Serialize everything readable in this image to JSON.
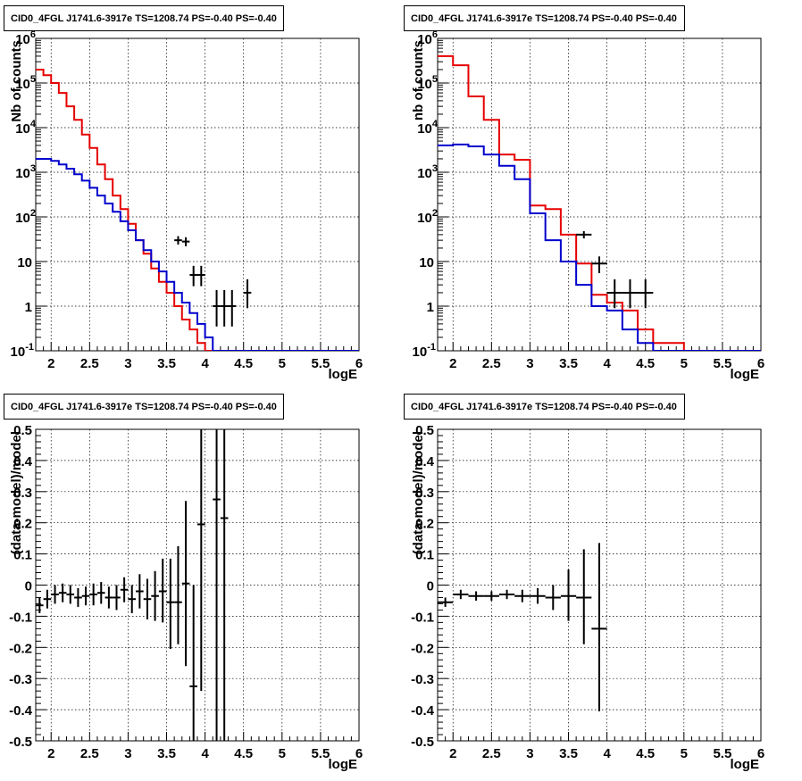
{
  "chart_data": [
    {
      "type": "line",
      "title": "CID0_4FGL J1741.6-3917e TS=1208.74 PS=-0.40 PS=-0.40",
      "xlabel": "logE",
      "ylabel": "Nb of counts",
      "xlim": [
        1.8,
        6.0
      ],
      "ylim": [
        0.1,
        1000000
      ],
      "yscale": "log",
      "grid": true,
      "x_ticks": [
        "2",
        "2.5",
        "3",
        "3.5",
        "4",
        "4.5",
        "5",
        "5.5",
        "6"
      ],
      "y_ticks": [
        "10^-1",
        "1",
        "10",
        "10^2",
        "10^3",
        "10^4",
        "10^5",
        "10^6"
      ],
      "bin_edges": [
        1.8,
        1.9,
        2.0,
        2.1,
        2.2,
        2.3,
        2.4,
        2.5,
        2.6,
        2.7,
        2.8,
        2.9,
        3.0,
        3.1,
        3.2,
        3.3,
        3.4,
        3.5,
        3.6,
        3.7,
        3.8,
        3.9,
        4.0,
        4.1,
        4.2,
        4.3,
        4.4,
        4.5,
        4.6,
        4.7,
        4.8,
        4.9,
        5.0,
        5.1,
        5.2,
        5.3,
        5.4,
        5.5,
        5.6,
        5.7,
        5.8,
        5.9,
        6.0
      ],
      "series": [
        {
          "color": "#e60000",
          "style": "step",
          "values": [
            200000,
            150000,
            100000,
            60000,
            30000,
            15000,
            7000,
            3500,
            1500,
            700,
            300,
            150,
            70,
            30,
            15,
            7,
            3.5,
            2,
            1,
            0.5,
            0.3,
            0.15,
            0.1,
            0.1,
            0.1,
            0.1,
            0.1,
            0.1,
            0.1,
            0.1,
            0.1,
            0.1,
            0.1,
            0.1,
            0.1,
            0.1,
            0.1,
            0.1,
            0.1,
            0.1,
            0.1,
            0.1
          ]
        },
        {
          "color": "#0000cc",
          "style": "step",
          "values": [
            2000,
            2000,
            1800,
            1500,
            1200,
            900,
            650,
            450,
            300,
            200,
            130,
            80,
            50,
            30,
            18,
            10,
            6,
            3.5,
            2,
            1.2,
            0.7,
            0.4,
            0.2,
            0.1,
            0.1,
            0.1,
            0.1,
            0.1,
            0.1,
            0.1,
            0.1,
            0.1,
            0.1,
            0.1,
            0.1,
            0.1,
            0.1,
            0.1,
            0.1,
            0.1,
            0.1,
            0.1
          ]
        },
        {
          "color": "#000000",
          "style": "errorbar",
          "points": [
            {
              "x": 3.65,
              "y": 30,
              "lo": 24,
              "hi": 37,
              "xerr": 0.05
            },
            {
              "x": 3.75,
              "y": 28,
              "lo": 22,
              "hi": 35,
              "xerr": 0.05
            },
            {
              "x": 3.85,
              "y": 5,
              "lo": 2.8,
              "hi": 8,
              "xerr": 0.05
            },
            {
              "x": 3.95,
              "y": 5,
              "lo": 2.8,
              "hi": 8,
              "xerr": 0.05
            },
            {
              "x": 4.15,
              "y": 1,
              "lo": 0.35,
              "hi": 2.3,
              "xerr": 0.05
            },
            {
              "x": 4.25,
              "y": 1,
              "lo": 0.35,
              "hi": 2.3,
              "xerr": 0.05
            },
            {
              "x": 4.35,
              "y": 1,
              "lo": 0.35,
              "hi": 2.3,
              "xerr": 0.05
            },
            {
              "x": 4.55,
              "y": 2,
              "lo": 0.9,
              "hi": 4,
              "xerr": 0.05
            }
          ]
        }
      ]
    },
    {
      "type": "line",
      "title": "CID0_4FGL J1741.6-3917e TS=1208.74 PS=-0.40 PS=-0.40",
      "xlabel": "logE",
      "ylabel": "nb of counts",
      "xlim": [
        1.8,
        6.0
      ],
      "ylim": [
        0.1,
        1000000
      ],
      "yscale": "log",
      "grid": true,
      "x_ticks": [
        "2",
        "2.5",
        "3",
        "3.5",
        "4",
        "4.5",
        "5",
        "5.5",
        "6"
      ],
      "y_ticks": [
        "10^-1",
        "1",
        "10",
        "10^2",
        "10^3",
        "10^4",
        "10^5",
        "10^6"
      ],
      "bin_edges": [
        1.8,
        2.0,
        2.2,
        2.4,
        2.6,
        2.8,
        3.0,
        3.2,
        3.4,
        3.6,
        3.8,
        4.0,
        4.2,
        4.4,
        4.6,
        4.8,
        5.0,
        5.2,
        5.4,
        5.6,
        5.8,
        6.0
      ],
      "series": [
        {
          "color": "#e60000",
          "style": "step",
          "values": [
            400000,
            250000,
            50000,
            15000,
            2500,
            1900,
            180,
            150,
            40,
            9,
            1.8,
            1.2,
            0.8,
            0.3,
            0.15,
            0.15,
            0.1,
            0.1,
            0.1,
            0.1,
            0.1
          ]
        },
        {
          "color": "#0000cc",
          "style": "step",
          "values": [
            4000,
            4200,
            3800,
            2500,
            1400,
            700,
            120,
            30,
            10,
            3,
            1,
            0.8,
            0.3,
            0.15,
            0.1,
            0.1,
            0.1,
            0.1,
            0.1,
            0.1,
            0.1
          ]
        },
        {
          "color": "#000000",
          "style": "errorbar",
          "points": [
            {
              "x": 3.7,
              "y": 40,
              "lo": 33,
              "hi": 48,
              "xerr": 0.1
            },
            {
              "x": 3.9,
              "y": 9,
              "lo": 5.5,
              "hi": 13,
              "xerr": 0.1
            },
            {
              "x": 4.1,
              "y": 2,
              "lo": 0.9,
              "hi": 4,
              "xerr": 0.1
            },
            {
              "x": 4.3,
              "y": 2,
              "lo": 0.9,
              "hi": 4,
              "xerr": 0.1
            },
            {
              "x": 4.5,
              "y": 2,
              "lo": 0.9,
              "hi": 4,
              "xerr": 0.1
            }
          ]
        }
      ]
    },
    {
      "type": "scatter",
      "title": "CID0_4FGL J1741.6-3917e TS=1208.74 PS=-0.40 PS=-0.40",
      "xlabel": "logE",
      "ylabel": "(data-model)/model",
      "xlim": [
        1.8,
        6.0
      ],
      "ylim": [
        -0.5,
        0.5
      ],
      "grid": true,
      "x_ticks": [
        "2",
        "2.5",
        "3",
        "3.5",
        "4",
        "4.5",
        "5",
        "5.5",
        "6"
      ],
      "y_ticks": [
        "-0.5",
        "-0.4",
        "-0.3",
        "-0.2",
        "-0.1",
        "0",
        "0.1",
        "0.2",
        "0.3",
        "0.4",
        "0.5"
      ],
      "series": [
        {
          "color": "#000000",
          "style": "errorbar",
          "points": [
            {
              "x": 1.85,
              "y": -0.065,
              "lo": -0.09,
              "hi": -0.04,
              "xerr": 0.05
            },
            {
              "x": 1.95,
              "y": -0.045,
              "lo": -0.075,
              "hi": -0.015,
              "xerr": 0.05
            },
            {
              "x": 2.05,
              "y": -0.03,
              "lo": -0.06,
              "hi": 0.0,
              "xerr": 0.05
            },
            {
              "x": 2.15,
              "y": -0.025,
              "lo": -0.055,
              "hi": 0.005,
              "xerr": 0.05
            },
            {
              "x": 2.25,
              "y": -0.03,
              "lo": -0.06,
              "hi": 0.0,
              "xerr": 0.05
            },
            {
              "x": 2.35,
              "y": -0.04,
              "lo": -0.07,
              "hi": -0.01,
              "xerr": 0.05
            },
            {
              "x": 2.45,
              "y": -0.035,
              "lo": -0.065,
              "hi": -0.005,
              "xerr": 0.05
            },
            {
              "x": 2.55,
              "y": -0.03,
              "lo": -0.065,
              "hi": 0.005,
              "xerr": 0.05
            },
            {
              "x": 2.65,
              "y": -0.025,
              "lo": -0.06,
              "hi": 0.01,
              "xerr": 0.05
            },
            {
              "x": 2.75,
              "y": -0.04,
              "lo": -0.075,
              "hi": -0.005,
              "xerr": 0.05
            },
            {
              "x": 2.85,
              "y": -0.04,
              "lo": -0.08,
              "hi": 0.0,
              "xerr": 0.05
            },
            {
              "x": 2.95,
              "y": -0.015,
              "lo": -0.055,
              "hi": 0.025,
              "xerr": 0.05
            },
            {
              "x": 3.05,
              "y": -0.045,
              "lo": -0.09,
              "hi": 0.0,
              "xerr": 0.05
            },
            {
              "x": 3.15,
              "y": -0.02,
              "lo": -0.075,
              "hi": 0.035,
              "xerr": 0.05
            },
            {
              "x": 3.25,
              "y": -0.045,
              "lo": -0.11,
              "hi": 0.02,
              "xerr": 0.05
            },
            {
              "x": 3.35,
              "y": -0.035,
              "lo": -0.115,
              "hi": 0.045,
              "xerr": 0.05
            },
            {
              "x": 3.45,
              "y": -0.02,
              "lo": -0.12,
              "hi": 0.085,
              "xerr": 0.05
            },
            {
              "x": 3.55,
              "y": -0.055,
              "lo": -0.205,
              "hi": 0.085,
              "xerr": 0.05
            },
            {
              "x": 3.65,
              "y": -0.055,
              "lo": -0.19,
              "hi": 0.125,
              "xerr": 0.05
            },
            {
              "x": 3.75,
              "y": 0.005,
              "lo": -0.26,
              "hi": 0.27,
              "xerr": 0.05
            },
            {
              "x": 3.85,
              "y": -0.325,
              "lo": -0.5,
              "hi": 0.0,
              "xerr": 0.05
            },
            {
              "x": 3.95,
              "y": 0.195,
              "lo": -0.34,
              "hi": 0.5,
              "xerr": 0.05
            },
            {
              "x": 4.15,
              "y": 0.275,
              "lo": -0.5,
              "hi": 0.5,
              "xerr": 0.05
            },
            {
              "x": 4.25,
              "y": 0.215,
              "lo": -0.5,
              "hi": 0.5,
              "xerr": 0.05
            }
          ]
        }
      ]
    },
    {
      "type": "scatter",
      "title": "CID0_4FGL J1741.6-3917e TS=1208.74 PS=-0.40 PS=-0.40",
      "xlabel": "logE",
      "ylabel": "(data-model)/model",
      "xlim": [
        1.8,
        6.0
      ],
      "ylim": [
        -0.5,
        0.5
      ],
      "grid": true,
      "x_ticks": [
        "2",
        "2.5",
        "3",
        "3.5",
        "4",
        "4.5",
        "5",
        "5.5",
        "6"
      ],
      "y_ticks": [
        "-0.5",
        "-0.4",
        "-0.3",
        "-0.2",
        "-0.1",
        "0",
        "0.1",
        "0.2",
        "0.3",
        "0.4",
        "0.5"
      ],
      "series": [
        {
          "color": "#000000",
          "style": "errorbar",
          "points": [
            {
              "x": 1.9,
              "y": -0.055,
              "lo": -0.07,
              "hi": -0.04,
              "xerr": 0.1
            },
            {
              "x": 2.1,
              "y": -0.03,
              "lo": -0.045,
              "hi": -0.015,
              "xerr": 0.1
            },
            {
              "x": 2.3,
              "y": -0.035,
              "lo": -0.05,
              "hi": -0.02,
              "xerr": 0.1
            },
            {
              "x": 2.5,
              "y": -0.035,
              "lo": -0.05,
              "hi": -0.02,
              "xerr": 0.1
            },
            {
              "x": 2.7,
              "y": -0.03,
              "lo": -0.045,
              "hi": -0.015,
              "xerr": 0.1
            },
            {
              "x": 2.9,
              "y": -0.035,
              "lo": -0.055,
              "hi": -0.015,
              "xerr": 0.1
            },
            {
              "x": 3.1,
              "y": -0.035,
              "lo": -0.06,
              "hi": -0.01,
              "xerr": 0.1
            },
            {
              "x": 3.3,
              "y": -0.04,
              "lo": -0.08,
              "hi": 0.0,
              "xerr": 0.1
            },
            {
              "x": 3.5,
              "y": -0.035,
              "lo": -0.115,
              "hi": 0.05,
              "xerr": 0.1
            },
            {
              "x": 3.7,
              "y": -0.04,
              "lo": -0.19,
              "hi": 0.115,
              "xerr": 0.1
            },
            {
              "x": 3.9,
              "y": -0.14,
              "lo": -0.405,
              "hi": 0.135,
              "xerr": 0.1
            }
          ]
        }
      ]
    }
  ]
}
